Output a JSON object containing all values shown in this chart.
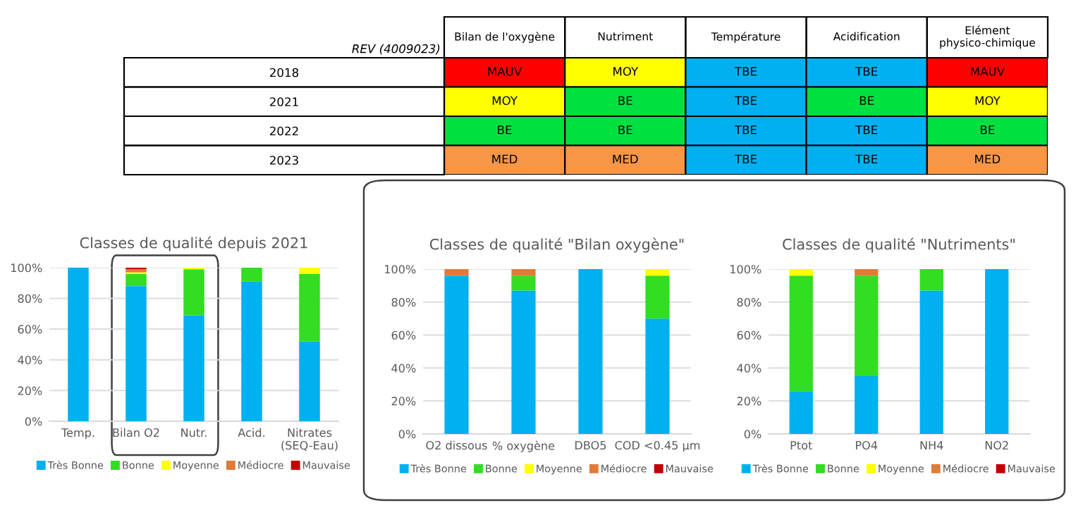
{
  "chart_data": [
    {
      "type": "other",
      "ylabel": "REV (4009023)",
      "categories": [
        "Bilan de l'oxygène",
        "Nutriment",
        "Température",
        "Acidification",
        "Elément physico-chimique"
      ],
      "y_categories": [
        "2018",
        "2021",
        "2022",
        "2023"
      ],
      "cell_labels": [
        [
          "MAUV",
          "MOY",
          "TBE",
          "TBE",
          "MAUV"
        ],
        [
          "MOY",
          "BE",
          "TBE",
          "BE",
          "MOY"
        ],
        [
          "BE",
          "BE",
          "TBE",
          "TBE",
          "BE"
        ],
        [
          "MED",
          "MED",
          "TBE",
          "TBE",
          "MED"
        ]
      ],
      "colors": [
        [
          "#ff0000",
          "#ffff00",
          "#00b0f0",
          "#00b0f0",
          "#ff0000"
        ],
        [
          "#ffff00",
          "#00e040",
          "#00b0f0",
          "#00e040",
          "#ffff00"
        ],
        [
          "#00e040",
          "#00e040",
          "#00b0f0",
          "#00b0f0",
          "#00e040"
        ],
        [
          "#f79646",
          "#f79646",
          "#00b0f0",
          "#00b0f0",
          "#f79646"
        ]
      ]
    },
    {
      "type": "bar",
      "stacked": true,
      "title": "Classes de qualité depuis 2021",
      "grid": "y",
      "legend": "bottom",
      "categories": [
        "Temp.",
        "Bilan O2",
        "Nutr.",
        "Acid.",
        "Nitrates\n(SEQ-Eau)"
      ],
      "ylim": [
        0,
        100
      ],
      "yticks": [
        {
          "value": 0,
          "label": "0%"
        },
        {
          "value": 20,
          "label": "20%"
        },
        {
          "value": 40,
          "label": "40%"
        },
        {
          "value": 60,
          "label": "60%"
        },
        {
          "value": 80,
          "label": "80%"
        },
        {
          "value": 100,
          "label": "100%"
        }
      ],
      "series": [
        {
          "name": "Très Bonne",
          "color": "#00b0f0",
          "values": [
            100,
            88,
            69,
            91,
            52
          ]
        },
        {
          "name": "Bonne",
          "color": "#33dd22",
          "values": [
            0,
            8,
            30,
            9,
            44
          ]
        },
        {
          "name": "Moyenne",
          "color": "#ffff00",
          "values": [
            0,
            1,
            1,
            0,
            4
          ]
        },
        {
          "name": "Médiocre",
          "color": "#e07b39",
          "values": [
            0,
            2,
            0,
            0,
            0
          ]
        },
        {
          "name": "Mauvaise",
          "color": "#c00000",
          "values": [
            0,
            1,
            0,
            0,
            0
          ]
        }
      ]
    },
    {
      "type": "bar",
      "stacked": true,
      "title": "Classes de qualité \"Bilan oxygène\"",
      "grid": "y",
      "legend": "bottom",
      "categories": [
        "O2 dissous",
        "% oxygène",
        "DBO5",
        "COD <0.45 µm"
      ],
      "ylim": [
        0,
        100
      ],
      "yticks": [
        {
          "value": 0,
          "label": "0%"
        },
        {
          "value": 20,
          "label": "20%"
        },
        {
          "value": 40,
          "label": "40%"
        },
        {
          "value": 60,
          "label": "60%"
        },
        {
          "value": 80,
          "label": "80%"
        },
        {
          "value": 100,
          "label": "100%"
        }
      ],
      "series": [
        {
          "name": "Très Bonne",
          "color": "#00b0f0",
          "values": [
            96,
            87,
            100,
            70
          ]
        },
        {
          "name": "Bonne",
          "color": "#33dd22",
          "values": [
            0,
            9,
            0,
            26
          ]
        },
        {
          "name": "Moyenne",
          "color": "#ffff00",
          "values": [
            0,
            0,
            0,
            4
          ]
        },
        {
          "name": "Médiocre",
          "color": "#e07b39",
          "values": [
            4,
            4,
            0,
            0
          ]
        },
        {
          "name": "Mauvaise",
          "color": "#c00000",
          "values": [
            0,
            0,
            0,
            0
          ]
        }
      ]
    },
    {
      "type": "bar",
      "stacked": true,
      "title": "Classes de qualité \"Nutriments\"",
      "grid": "y",
      "legend": "bottom",
      "categories": [
        "Ptot",
        "PO4",
        "NH4",
        "NO2"
      ],
      "ylim": [
        0,
        100
      ],
      "yticks": [
        {
          "value": 0,
          "label": "0%"
        },
        {
          "value": 20,
          "label": "20%"
        },
        {
          "value": 40,
          "label": "40%"
        },
        {
          "value": 60,
          "label": "60%"
        },
        {
          "value": 80,
          "label": "80%"
        },
        {
          "value": 100,
          "label": "100%"
        }
      ],
      "series": [
        {
          "name": "Très Bonne",
          "color": "#00b0f0",
          "values": [
            26,
            35,
            87,
            100
          ]
        },
        {
          "name": "Bonne",
          "color": "#33dd22",
          "values": [
            70,
            61,
            13,
            0
          ]
        },
        {
          "name": "Moyenne",
          "color": "#ffff00",
          "values": [
            4,
            0,
            0,
            0
          ]
        },
        {
          "name": "Médiocre",
          "color": "#e07b39",
          "values": [
            0,
            4,
            0,
            0
          ]
        },
        {
          "name": "Mauvaise",
          "color": "#c00000",
          "values": [
            0,
            0,
            0,
            0
          ]
        }
      ]
    }
  ]
}
